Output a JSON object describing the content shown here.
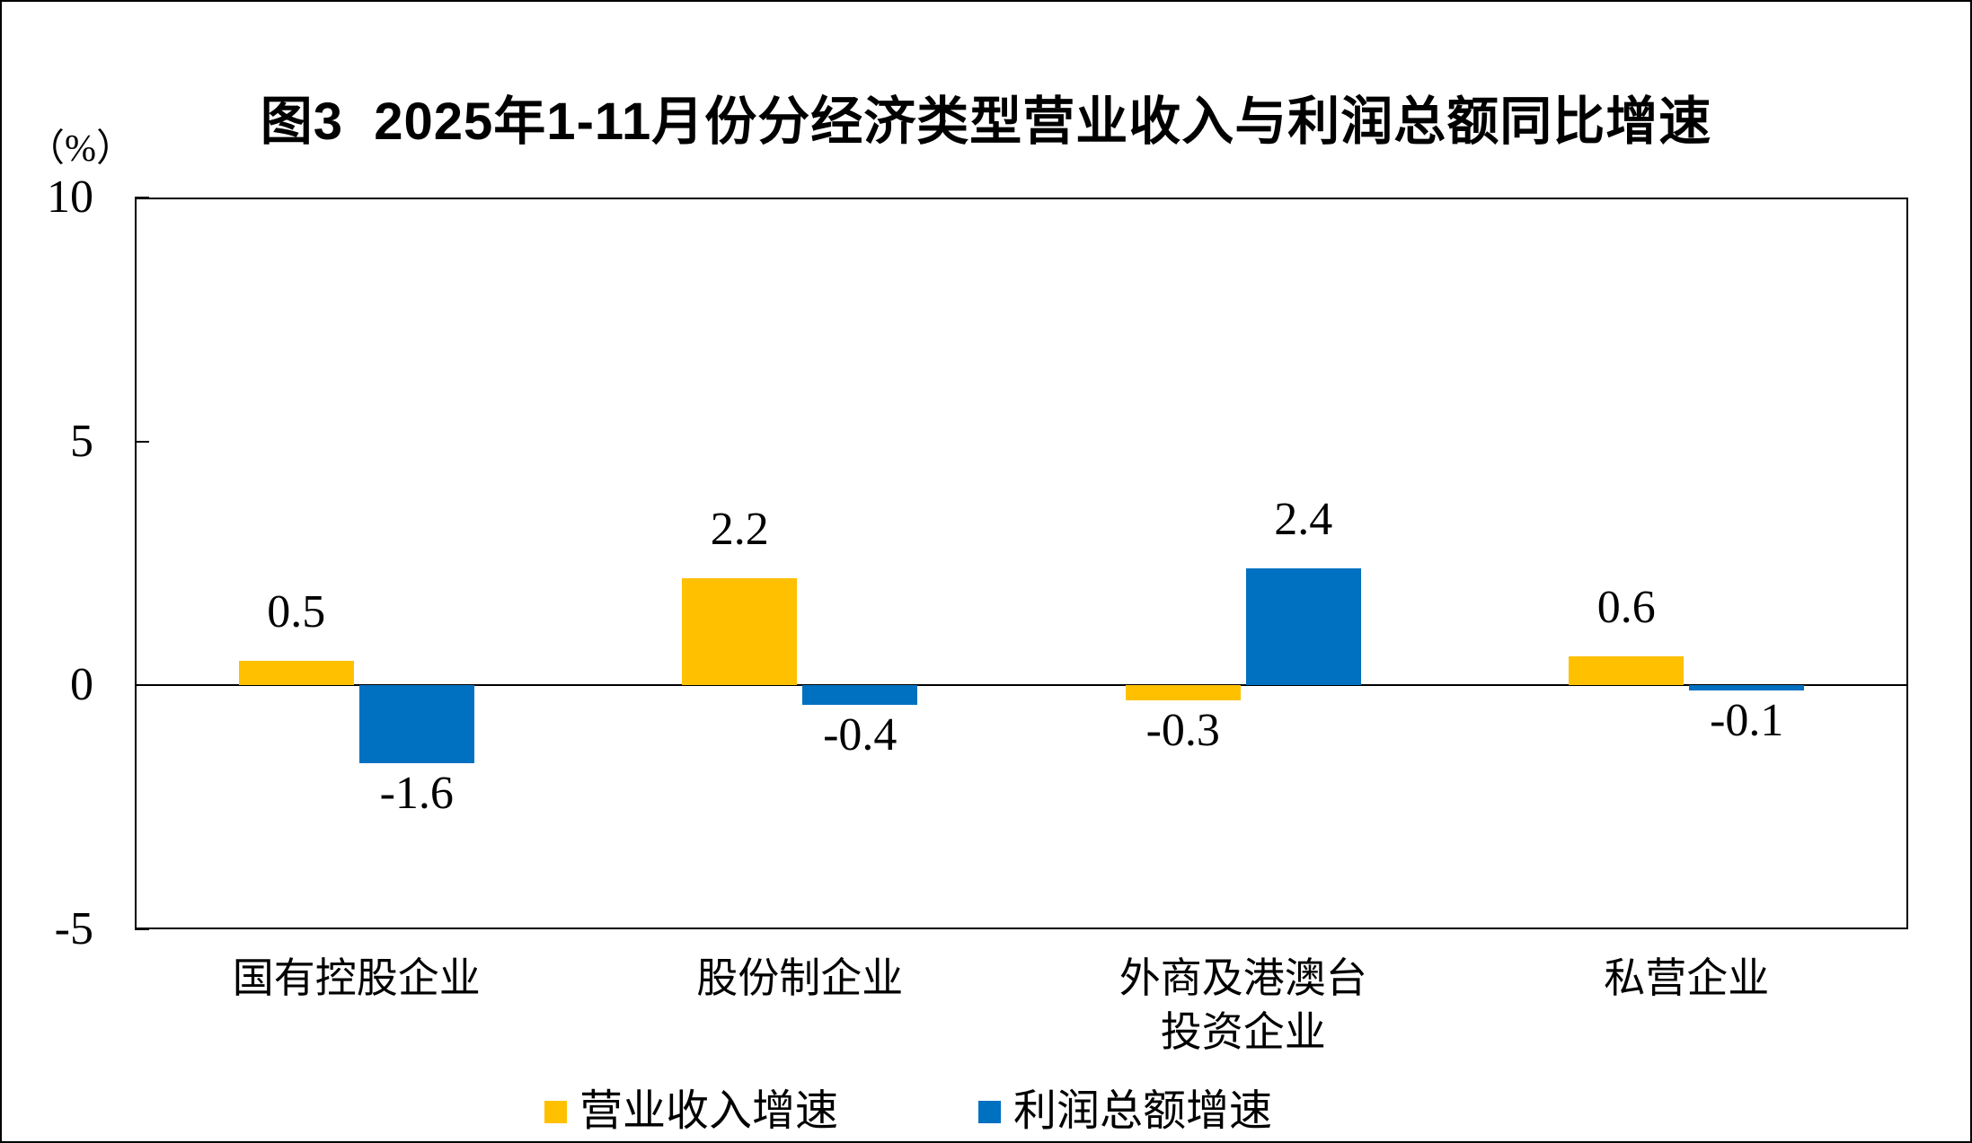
{
  "title": "图3  2025年1-11月份分经济类型营业收入与利润总额同比增速",
  "chart_data": {
    "type": "bar",
    "title": "图3  2025年1-11月份分经济类型营业收入与利润总额同比增速",
    "unit_label": "（%）",
    "xlabel": "",
    "ylabel": "（%）",
    "categories": [
      "国有控股企业",
      "股份制企业",
      "外商及港澳台\n投资企业",
      "私营企业"
    ],
    "series": [
      {
        "name": "营业收入增速",
        "color": "#FFC000",
        "values": [
          0.5,
          2.2,
          -0.3,
          0.6
        ]
      },
      {
        "name": "利润总额增速",
        "color": "#0070C0",
        "values": [
          -1.6,
          -0.4,
          2.4,
          -0.1
        ]
      }
    ],
    "data_labels_shown": true,
    "ylim": [
      -5,
      10
    ],
    "yticks": [
      10,
      5,
      0,
      -5
    ],
    "grid": false,
    "legend_position": "bottom",
    "axis_color": "#000000",
    "background_color": "#FFFFFF"
  }
}
